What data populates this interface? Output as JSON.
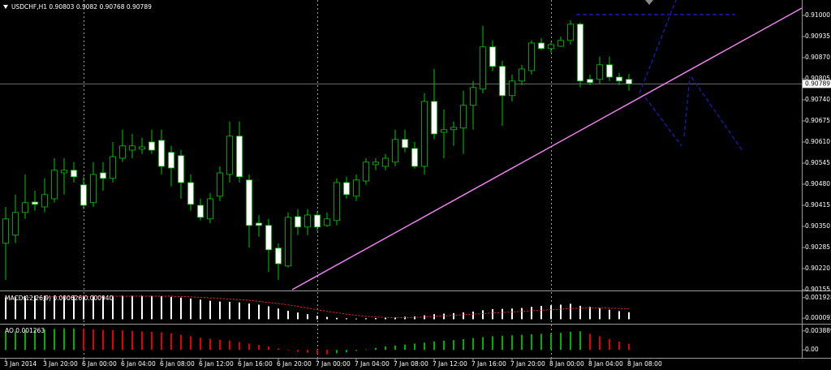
{
  "chart_data": [
    {
      "type": "candlestick",
      "title": "USDCHF,H1",
      "categories": [
        "3 Jan 2014",
        null,
        null,
        null,
        "3 Jan 20:00",
        null,
        null,
        null,
        "6 Jan 00:00",
        null,
        null,
        null,
        "6 Jan 04:00",
        null,
        null,
        null,
        "6 Jan 08:00",
        null,
        null,
        null,
        "6 Jan 12:00",
        null,
        null,
        null,
        "6 Jan 16:00",
        null,
        null,
        null,
        "6 Jan 20:00",
        null,
        null,
        null,
        "7 Jan 00:00",
        null,
        null,
        null,
        "7 Jan 04:00",
        null,
        null,
        null,
        "7 Jan 08:00",
        null,
        null,
        null,
        "7 Jan 12:00",
        null,
        null,
        null,
        "7 Jan 16:00",
        null,
        null,
        null,
        "7 Jan 20:00",
        null,
        null,
        null,
        "8 Jan 00:00",
        null,
        null,
        null,
        "8 Jan 04:00",
        null,
        null,
        null,
        "8 Jan 08:00"
      ],
      "open": [
        0.90298,
        0.90323,
        0.90393,
        0.90425,
        0.9041,
        0.90435,
        0.90515,
        0.90523,
        0.90478,
        0.90423,
        0.90515,
        0.90498,
        0.9056,
        0.90585,
        0.90588,
        0.9061,
        0.90615,
        0.90578,
        0.90568,
        0.90485,
        0.90415,
        0.90373,
        0.90443,
        0.9051,
        0.90628,
        0.90493,
        0.9036,
        0.90353,
        0.90283,
        0.90228,
        0.9038,
        0.90348,
        0.90385,
        0.90353,
        0.90368,
        0.90485,
        0.90443,
        0.9049,
        0.9054,
        0.90535,
        0.90548,
        0.90618,
        0.9059,
        0.90535,
        0.90735,
        0.9064,
        0.90648,
        0.90653,
        0.90723,
        0.90773,
        0.90903,
        0.90843,
        0.90753,
        0.90798,
        0.9083,
        0.90915,
        0.90898,
        0.90905,
        0.90923,
        0.90973,
        0.90803,
        0.90803,
        0.90848,
        0.9081,
        0.90803
      ],
      "high": [
        0.9041,
        0.90448,
        0.9051,
        0.9046,
        0.90498,
        0.9056,
        0.9056,
        0.90548,
        0.90503,
        0.90548,
        0.90548,
        0.9061,
        0.90648,
        0.90635,
        0.90623,
        0.90648,
        0.90648,
        0.90598,
        0.90585,
        0.9051,
        0.90435,
        0.90453,
        0.90535,
        0.90673,
        0.90673,
        0.9051,
        0.90385,
        0.90373,
        0.90298,
        0.90393,
        0.90403,
        0.90403,
        0.90398,
        0.90393,
        0.90498,
        0.90503,
        0.9051,
        0.9056,
        0.9056,
        0.90573,
        0.90648,
        0.90648,
        0.9061,
        0.9076,
        0.90835,
        0.9071,
        0.90673,
        0.90768,
        0.90798,
        0.90968,
        0.90923,
        0.9086,
        0.90818,
        0.90848,
        0.90923,
        0.9093,
        0.90918,
        0.90935,
        0.90985,
        0.90978,
        0.90818,
        0.90873,
        0.90873,
        0.90823,
        0.9082
      ],
      "low": [
        0.90185,
        0.90298,
        0.90373,
        0.90398,
        0.90393,
        0.90423,
        0.90448,
        0.90485,
        0.90403,
        0.9041,
        0.9046,
        0.90485,
        0.90548,
        0.9056,
        0.90573,
        0.90573,
        0.9051,
        0.90473,
        0.90435,
        0.90398,
        0.90368,
        0.9036,
        0.90428,
        0.90485,
        0.90485,
        0.90285,
        0.90318,
        0.9021,
        0.90185,
        0.90223,
        0.90323,
        0.90323,
        0.90335,
        0.90348,
        0.90353,
        0.90435,
        0.90428,
        0.90478,
        0.90523,
        0.90523,
        0.90535,
        0.90578,
        0.90528,
        0.9051,
        0.90618,
        0.9056,
        0.90598,
        0.90573,
        0.90648,
        0.9076,
        0.90828,
        0.9066,
        0.90735,
        0.90785,
        0.90818,
        0.90893,
        0.90885,
        0.90903,
        0.9091,
        0.90778,
        0.90785,
        0.9079,
        0.90798,
        0.90785,
        0.90768
      ],
      "close": [
        0.90373,
        0.90393,
        0.90423,
        0.90418,
        0.90448,
        0.90523,
        0.90523,
        0.90503,
        0.90415,
        0.9051,
        0.90498,
        0.90565,
        0.90598,
        0.90598,
        0.90595,
        0.90585,
        0.90535,
        0.9053,
        0.90485,
        0.90418,
        0.90378,
        0.90435,
        0.90515,
        0.90628,
        0.90503,
        0.90353,
        0.90353,
        0.90278,
        0.90235,
        0.90378,
        0.90348,
        0.90385,
        0.90348,
        0.90373,
        0.90485,
        0.90448,
        0.90493,
        0.90548,
        0.90548,
        0.9056,
        0.90618,
        0.90593,
        0.90535,
        0.90735,
        0.90635,
        0.90648,
        0.90655,
        0.90723,
        0.90778,
        0.90903,
        0.90843,
        0.90753,
        0.90798,
        0.90835,
        0.90915,
        0.90898,
        0.9091,
        0.90923,
        0.90973,
        0.90798,
        0.90793,
        0.90848,
        0.9081,
        0.90798,
        0.90789
      ],
      "ylim": [
        0.90155,
        0.910475
      ],
      "yticks": [
        {
          "value": 0.91,
          "label": "0.91000"
        },
        0.90935,
        {
          "value": 0.9087,
          "label": "0.90870"
        },
        0.90805,
        {
          "value": 0.9074,
          "label": "0.90740"
        },
        0.90675,
        {
          "value": 0.9061,
          "label": "0.90610"
        },
        0.90545,
        {
          "value": 0.9048,
          "label": "0.90480"
        },
        0.90415,
        {
          "value": 0.9035,
          "label": "0.90350"
        },
        0.90285,
        {
          "value": 0.9022,
          "label": "0.90220"
        },
        0.90155
      ],
      "bull_color": "#000000",
      "bear_color": "#ffffff",
      "wick_color": "#00c800",
      "grid": true
    },
    {
      "type": "macd",
      "title": "MACD(12,26,9)",
      "series": [
        {
          "color": "#ffffff",
          "values": [
            0.00195,
            0.002,
            0.00205,
            0.0021,
            0.0021,
            0.0021,
            0.0021,
            0.0021,
            0.0021,
            0.0021,
            0.0021,
            0.0021,
            0.0021,
            0.0021,
            0.0021,
            0.00208,
            0.00205,
            0.002,
            0.00193,
            0.00185,
            0.00175,
            0.00165,
            0.00158,
            0.00155,
            0.0015,
            0.0014,
            0.0013,
            0.00115,
            0.00095,
            0.00075,
            0.0006,
            0.00045,
            0.0003,
            0.0002,
            0.00012,
            8e-05,
            6e-05,
            8e-05,
            0.0001,
            0.00013,
            0.00018,
            0.00022,
            0.00025,
            0.00035,
            0.00045,
            0.0005,
            0.00055,
            0.0006,
            0.00068,
            0.0008,
            0.0009,
            0.00092,
            0.00095,
            0.001,
            0.0011,
            0.00118,
            0.00125,
            0.0013,
            0.00138,
            0.0012,
            0.0011,
            0.001,
            0.00085,
            0.00072,
            0.000626
          ]
        },
        {
          "color": "#ff2020",
          "values": [
            0.0019,
            0.00192,
            0.00194,
            0.00196,
            0.00198,
            0.002,
            0.00201,
            0.00202,
            0.00203,
            0.00204,
            0.00205,
            0.00205,
            0.00206,
            0.00206,
            0.00206,
            0.00206,
            0.00206,
            0.00206,
            0.00203,
            0.002,
            0.00195,
            0.0019,
            0.00185,
            0.0018,
            0.00175,
            0.00168,
            0.0016,
            0.0015,
            0.0014,
            0.00128,
            0.00115,
            0.001,
            0.00085,
            0.0007,
            0.00058,
            0.00045,
            0.00035,
            0.00027,
            0.0002,
            0.00016,
            0.00014,
            0.00014,
            0.00016,
            0.0002,
            0.00025,
            0.0003,
            0.00035,
            0.0004,
            0.00045,
            0.0005,
            0.00056,
            0.0006,
            0.00065,
            0.0007,
            0.00075,
            0.0008,
            0.00085,
            0.0009,
            0.00095,
            0.00098,
            0.001,
            0.001,
            0.00098,
            0.00096,
            0.00094
          ],
          "value_labels": [
            null,
            null,
            null,
            null,
            null,
            null,
            null,
            null,
            null,
            null,
            null,
            null,
            null,
            null,
            null,
            null,
            null,
            null,
            null,
            null,
            null,
            null,
            null,
            null,
            null,
            null,
            null,
            null,
            null,
            null,
            null,
            null,
            null,
            null,
            null,
            null,
            null,
            null,
            null,
            null,
            null,
            null,
            null,
            null,
            null,
            null,
            null,
            null,
            null,
            null,
            null,
            null,
            null,
            null,
            null,
            null,
            null,
            null,
            null,
            null,
            null,
            null,
            null,
            null,
            "0.000940"
          ]
        }
      ],
      "ylim": [
        -0.00026,
        0.00235
      ],
      "yticks": [
        0.001928,
        9.3e-05
      ]
    },
    {
      "type": "ao",
      "title": "AO",
      "values": [
        0.0036,
        0.0038,
        0.004,
        0.0041,
        0.0042,
        0.0043,
        0.0044,
        0.0044,
        0.0043,
        0.0042,
        0.0041,
        0.00405,
        0.004,
        0.0039,
        0.0038,
        0.0037,
        0.0036,
        0.0034,
        0.0031,
        0.0028,
        0.0025,
        0.0023,
        0.0021,
        0.0019,
        0.0016,
        0.0013,
        0.001,
        0.0007,
        0.0003,
        -0.0001,
        -0.0004,
        -0.0006,
        -0.0008,
        -0.0009,
        -0.0007,
        -0.0005,
        -0.0002,
        0.0001,
        0.0004,
        0.0007,
        0.0009,
        0.0011,
        0.0013,
        0.0015,
        0.0017,
        0.0019,
        0.002,
        0.0022,
        0.0024,
        0.0026,
        0.0028,
        0.0029,
        0.003,
        0.0031,
        0.0032,
        0.0033,
        0.0034,
        0.0035,
        0.0037,
        0.0038,
        0.0033,
        0.0028,
        0.0022,
        0.0017,
        0.001263
      ],
      "up_color": "#00b000",
      "down_color": "#e00000",
      "ylim": [
        -0.00146,
        0.00502
      ],
      "yticks": [
        0.003889,
        {
          "value": 0,
          "label": "0.00"
        }
      ]
    }
  ]
}
